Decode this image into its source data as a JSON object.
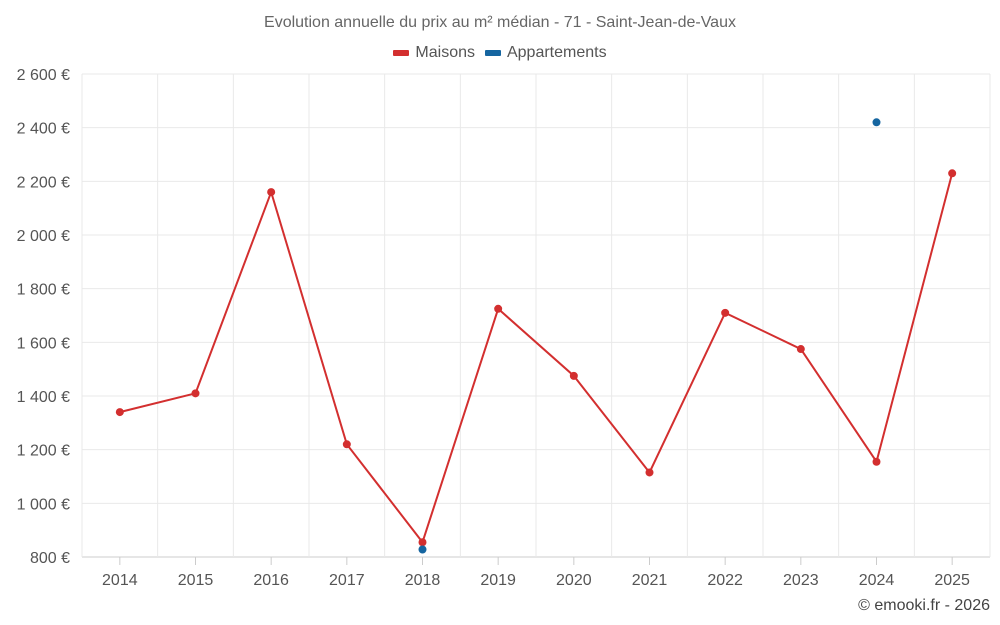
{
  "title": "Evolution annuelle du prix au m² médian - 71 - Saint-Jean-de-Vaux",
  "credit": "© emooki.fr - 2026",
  "colors": {
    "maisons": "#d32f2f",
    "appartements": "#1565a0",
    "grid": "#e9e9e9",
    "axis": "#cccccc"
  },
  "chart_data": {
    "type": "line",
    "title": "Evolution annuelle du prix au m² médian - 71 - Saint-Jean-de-Vaux",
    "x": [
      "2014",
      "2015",
      "2016",
      "2017",
      "2018",
      "2019",
      "2020",
      "2021",
      "2022",
      "2023",
      "2024",
      "2025"
    ],
    "y_ticks": [
      "800 €",
      "1 000 €",
      "1 200 €",
      "1 400 €",
      "1 600 €",
      "1 800 €",
      "2 000 €",
      "2 200 €",
      "2 400 €",
      "2 600 €"
    ],
    "ylim": [
      800,
      2600
    ],
    "grid": true,
    "legend_position": "top-center",
    "series": [
      {
        "name": "Maisons",
        "color": "#d32f2f",
        "values": [
          1340,
          1410,
          2160,
          1220,
          855,
          1725,
          1475,
          1115,
          1710,
          1575,
          1155,
          2230
        ]
      },
      {
        "name": "Appartements",
        "color": "#1565a0",
        "values": [
          null,
          null,
          null,
          null,
          828,
          null,
          null,
          null,
          null,
          null,
          2420,
          null
        ]
      }
    ]
  }
}
